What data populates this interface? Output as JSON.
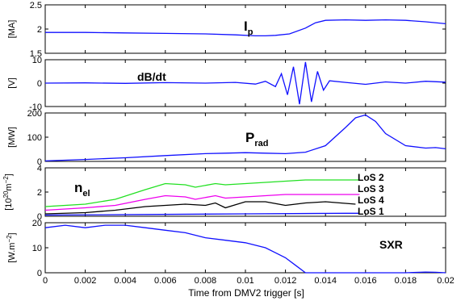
{
  "chart_data": [
    {
      "type": "line",
      "ylabel": "[MA]",
      "title": "I",
      "title_sub": "p",
      "yticks": [
        1.5,
        2,
        2.5
      ],
      "ylim": [
        1.5,
        2.5
      ],
      "series": [
        {
          "color": "#1010ff",
          "x": [
            0,
            0.002,
            0.004,
            0.006,
            0.008,
            0.0095,
            0.0105,
            0.011,
            0.0115,
            0.0122,
            0.013,
            0.0135,
            0.014,
            0.015,
            0.016,
            0.017,
            0.018,
            0.019,
            0.02
          ],
          "values": [
            1.93,
            1.93,
            1.92,
            1.91,
            1.9,
            1.88,
            1.86,
            1.86,
            1.87,
            1.9,
            2.02,
            2.13,
            2.18,
            2.19,
            2.18,
            2.19,
            2.18,
            2.15,
            2.11
          ]
        }
      ]
    },
    {
      "type": "line",
      "ylabel": "[V]",
      "title": "dB/dt",
      "yticks": [
        -10,
        0,
        10
      ],
      "ylim": [
        -10,
        10
      ],
      "series": [
        {
          "color": "#1010ff",
          "x": [
            0,
            0.002,
            0.004,
            0.006,
            0.008,
            0.0095,
            0.0105,
            0.011,
            0.0115,
            0.0118,
            0.0121,
            0.0124,
            0.0127,
            0.013,
            0.0133,
            0.0136,
            0.0139,
            0.0142,
            0.015,
            0.016,
            0.017,
            0.018,
            0.019,
            0.02
          ],
          "values": [
            0,
            0.1,
            -0.1,
            0.2,
            0,
            0.3,
            -0.4,
            0.8,
            -1.5,
            4,
            -5,
            7,
            -9,
            9,
            -8,
            5,
            -3,
            1,
            0.3,
            -0.5,
            0.5,
            0,
            0.8,
            0.4
          ]
        }
      ]
    },
    {
      "type": "line",
      "ylabel": "[MW]",
      "title": "P",
      "title_sub": "rad",
      "yticks": [
        0,
        100,
        200
      ],
      "ylim": [
        0,
        200
      ],
      "series": [
        {
          "color": "#1010ff",
          "x": [
            0,
            0.002,
            0.004,
            0.006,
            0.008,
            0.009,
            0.01,
            0.011,
            0.012,
            0.013,
            0.014,
            0.015,
            0.0155,
            0.016,
            0.0165,
            0.017,
            0.018,
            0.019,
            0.0195,
            0.02
          ],
          "values": [
            2,
            8,
            15,
            24,
            32,
            34,
            36,
            34,
            32,
            38,
            65,
            140,
            180,
            192,
            165,
            115,
            65,
            55,
            57,
            52
          ]
        }
      ]
    },
    {
      "type": "line",
      "ylabel": "[10",
      "ylabel_sup": "20",
      "ylabel_tail": "m",
      "ylabel_sup2": "−2",
      "ylabel_end": "]",
      "title": "n",
      "title_sub": "el",
      "yticks": [
        0,
        2,
        4
      ],
      "ylim": [
        0,
        4
      ],
      "legend_labels": [
        "LoS 2",
        "LoS 3",
        "LoS 4",
        "LoS 1"
      ],
      "legend_colors": [
        "#22e022",
        "#ee00ee",
        "#000000",
        "#1010ff"
      ],
      "series": [
        {
          "color": "#22e022",
          "x": [
            0,
            0.002,
            0.0035,
            0.005,
            0.006,
            0.007,
            0.0075,
            0.0085,
            0.009,
            0.01,
            0.011,
            0.012,
            0.013,
            0.014,
            0.015,
            0.0157
          ],
          "values": [
            0.8,
            1.0,
            1.4,
            2.2,
            2.7,
            2.6,
            2.4,
            2.7,
            2.6,
            2.7,
            2.8,
            2.9,
            3.0,
            3.0,
            3.0,
            3.0
          ]
        },
        {
          "color": "#ee00ee",
          "x": [
            0,
            0.002,
            0.0035,
            0.005,
            0.006,
            0.007,
            0.0075,
            0.0085,
            0.009,
            0.01,
            0.011,
            0.012,
            0.013,
            0.014,
            0.015,
            0.0157
          ],
          "values": [
            0.5,
            0.7,
            0.9,
            1.4,
            1.7,
            1.6,
            1.4,
            1.7,
            1.5,
            1.6,
            1.7,
            1.8,
            1.8,
            1.8,
            1.8,
            1.8
          ]
        },
        {
          "color": "#000000",
          "x": [
            0,
            0.002,
            0.0035,
            0.005,
            0.006,
            0.007,
            0.008,
            0.0085,
            0.009,
            0.01,
            0.011,
            0.012,
            0.013,
            0.014,
            0.0155
          ],
          "values": [
            0.2,
            0.3,
            0.5,
            0.8,
            0.9,
            1.0,
            0.9,
            1.1,
            0.7,
            1.2,
            1.2,
            0.9,
            1.1,
            1.2,
            1.0
          ]
        },
        {
          "color": "#1010ff",
          "x": [
            0,
            0.005,
            0.01,
            0.015,
            0.0157
          ],
          "values": [
            0.1,
            0.15,
            0.2,
            0.25,
            0.25
          ]
        }
      ]
    },
    {
      "type": "line",
      "ylabel": "[W.m",
      "ylabel_sup": "−2",
      "ylabel_end": "]",
      "title": "SXR",
      "yticks": [
        0,
        10,
        20
      ],
      "ylim": [
        0,
        20
      ],
      "xlabel": "Time from DMV2 trigger [s]",
      "xticks": [
        "0",
        "0.002",
        "0.004",
        "0.006",
        "0.008",
        "0.01",
        "0.012",
        "0.014",
        "0.016",
        "0.018",
        "0.02"
      ],
      "xlim": [
        0,
        0.02
      ],
      "series": [
        {
          "color": "#1010ff",
          "x": [
            0,
            0.001,
            0.002,
            0.003,
            0.004,
            0.005,
            0.006,
            0.007,
            0.008,
            0.009,
            0.01,
            0.0105,
            0.011,
            0.0115,
            0.012,
            0.0125,
            0.013,
            0.0135,
            0.014,
            0.016,
            0.018,
            0.019,
            0.0195,
            0.02
          ],
          "values": [
            18,
            19,
            18,
            19,
            19,
            18,
            17,
            16,
            14,
            13,
            12,
            11,
            10,
            8,
            6,
            3,
            0,
            0,
            0,
            0,
            0,
            0.3,
            0.2,
            0
          ]
        }
      ]
    }
  ]
}
